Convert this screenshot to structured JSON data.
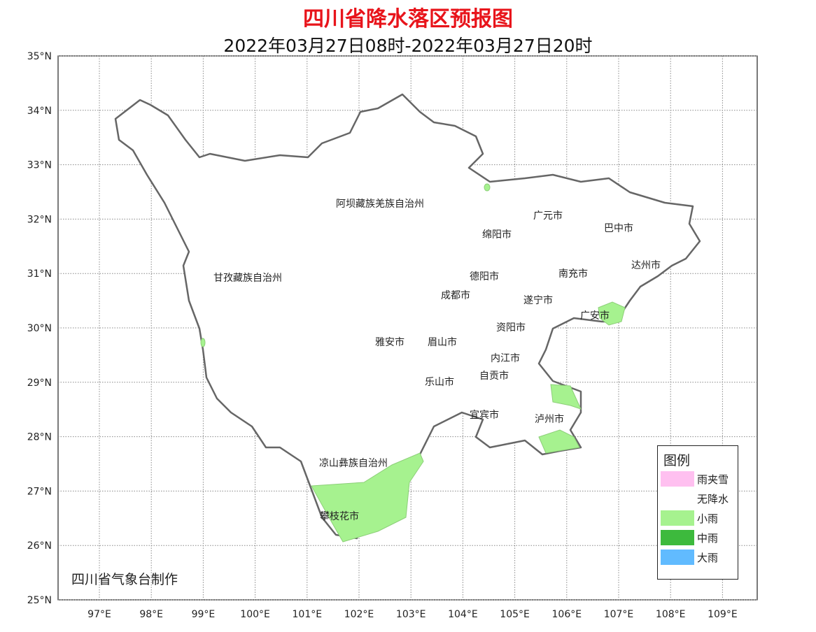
{
  "title": "四川省降水落区预报图",
  "subtitle": "2022年03月27日08时-2022年03月27日20时",
  "axes": {
    "lon_ticks": [
      "97°E",
      "98°E",
      "99°E",
      "100°E",
      "101°E",
      "102°E",
      "103°E",
      "104°E",
      "105°E",
      "106°E",
      "107°E",
      "108°E",
      "109°E"
    ],
    "lat_ticks": [
      "35°N",
      "34°N",
      "33°N",
      "32°N",
      "31°N",
      "30°N",
      "29°N",
      "28°N",
      "27°N",
      "26°N",
      "25°N"
    ]
  },
  "regions": [
    "阿坝藏族羌族自治州",
    "甘孜藏族自治州",
    "凉山彝族自治州",
    "广元市",
    "巴中市",
    "绵阳市",
    "达州市",
    "德阳市",
    "南充市",
    "成都市",
    "遂宁市",
    "广安市",
    "资阳市",
    "雅安市",
    "眉山市",
    "内江市",
    "乐山市",
    "自贡市",
    "宜宾市",
    "泸州市",
    "攀枝花市"
  ],
  "legend": {
    "title": "图例",
    "items": [
      {
        "label": "雨夹雪",
        "color": "#ffc0f0"
      },
      {
        "label": "无降水",
        "color": "#ffffff"
      },
      {
        "label": "小雨",
        "color": "#a6f28f"
      },
      {
        "label": "中雨",
        "color": "#3dba3d"
      },
      {
        "label": "大雨",
        "color": "#61bbff"
      }
    ]
  },
  "credit": "四川省气象台制作"
}
